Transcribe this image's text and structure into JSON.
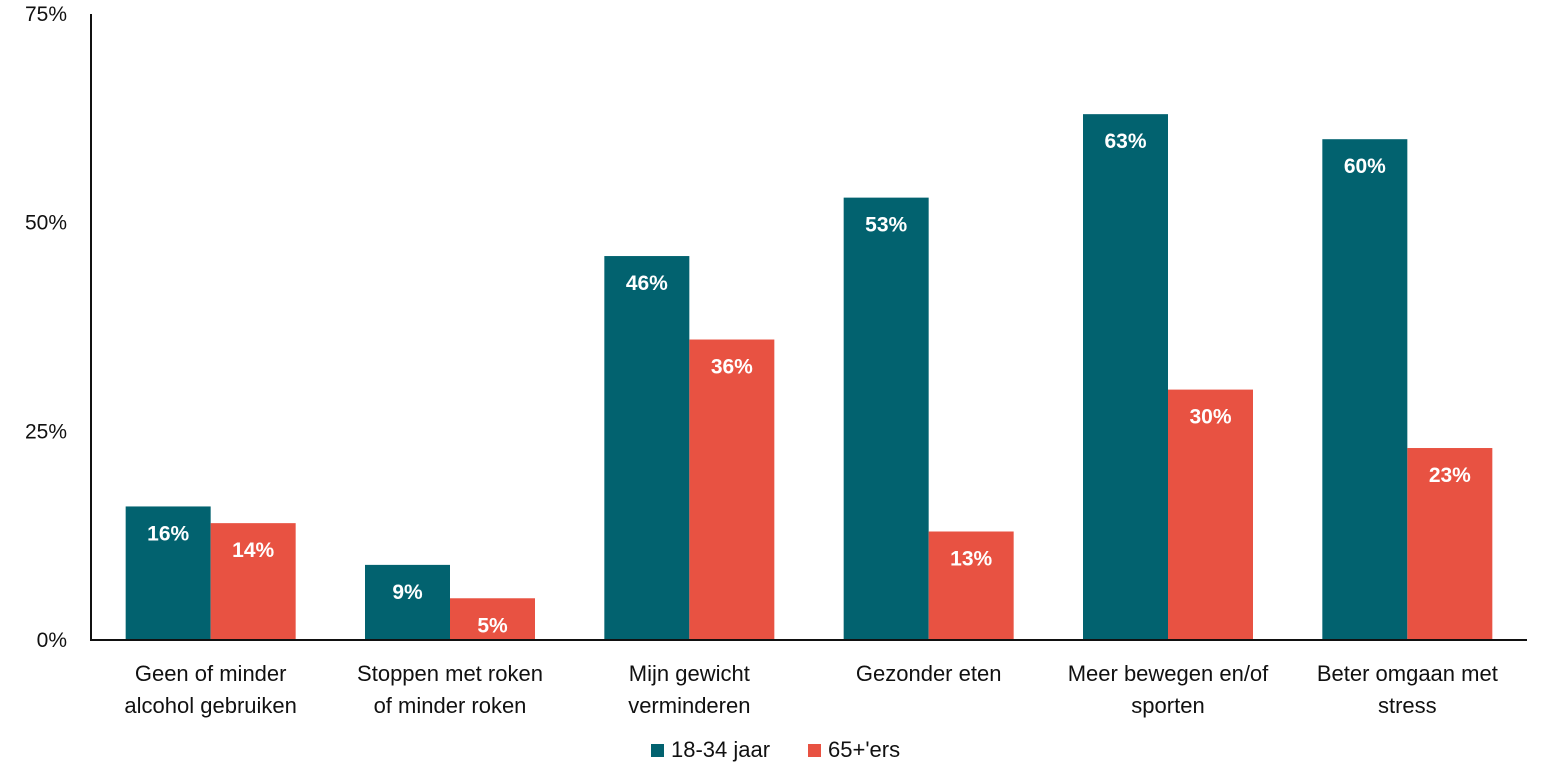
{
  "chart_data": {
    "type": "bar",
    "title": "",
    "xlabel": "",
    "ylabel": "",
    "ylim": [
      0,
      75
    ],
    "yticks": [
      0,
      25,
      50,
      75
    ],
    "ytick_labels": [
      "0%",
      "25%",
      "50%",
      "75%"
    ],
    "grid": false,
    "legend_position": "bottom-center",
    "categories": [
      [
        "Geen of minder",
        "alcohol gebruiken"
      ],
      [
        "Stoppen met roken",
        "of minder roken"
      ],
      [
        "Mijn gewicht",
        "verminderen"
      ],
      [
        "Gezonder eten"
      ],
      [
        "Meer bewegen en/of",
        "sporten"
      ],
      [
        "Beter omgaan met",
        "stress"
      ]
    ],
    "series": [
      {
        "name": "18-34 jaar",
        "color": "#02626f",
        "values": [
          16,
          9,
          46,
          53,
          63,
          60
        ],
        "labels": [
          "16%",
          "9%",
          "46%",
          "53%",
          "63%",
          "60%"
        ]
      },
      {
        "name": "65+'ers",
        "color": "#e85242",
        "values": [
          14,
          5,
          36,
          13,
          30,
          23
        ],
        "labels": [
          "14%",
          "5%",
          "36%",
          "13%",
          "30%",
          "23%"
        ]
      }
    ]
  }
}
